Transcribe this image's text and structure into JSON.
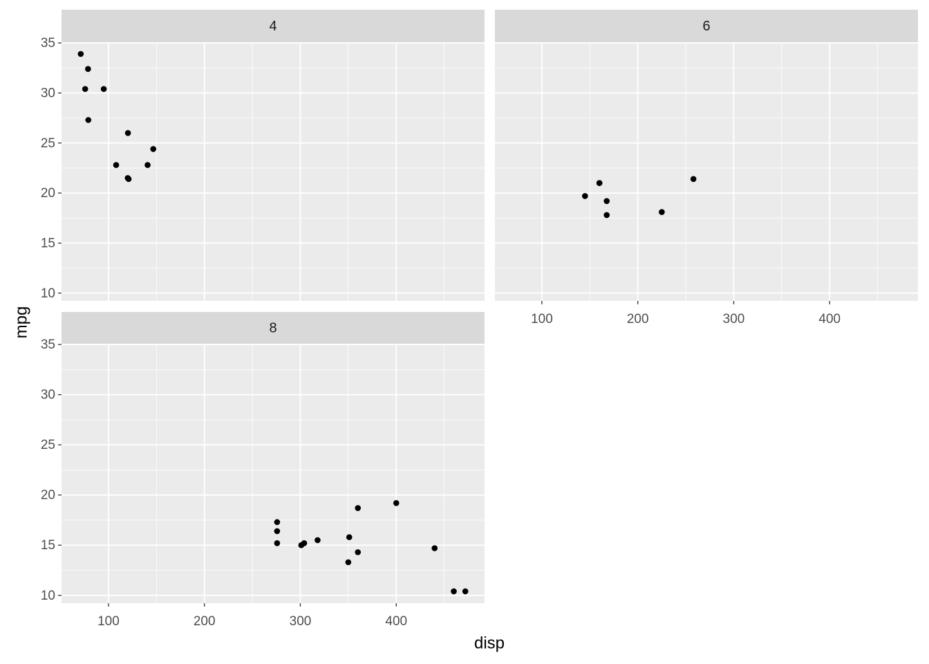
{
  "chart_data": {
    "type": "scatter",
    "xlabel": "disp",
    "ylabel": "mpg",
    "color": "#000000",
    "xlim": [
      51.055,
      492.045
    ],
    "ylim": [
      9.225,
      35.075
    ],
    "xticks": [
      100,
      200,
      300,
      400
    ],
    "yticks": [
      10,
      15,
      20,
      25,
      30,
      35
    ],
    "grid": true,
    "facets": [
      {
        "name": "4",
        "x": [
          108,
          146.7,
          140.8,
          78.7,
          75.7,
          71.1,
          120.1,
          79,
          120.3,
          95.1,
          121
        ],
        "y": [
          22.8,
          24.4,
          22.8,
          32.4,
          30.4,
          33.9,
          21.5,
          27.3,
          26.0,
          30.4,
          21.4
        ]
      },
      {
        "name": "6",
        "x": [
          160,
          160,
          258,
          225,
          167.6,
          167.6,
          145
        ],
        "y": [
          21,
          21,
          21.4,
          18.1,
          19.2,
          17.8,
          19.7
        ]
      },
      {
        "name": "8",
        "x": [
          360,
          360,
          275.8,
          275.8,
          275.8,
          472,
          460,
          440,
          318,
          304,
          350,
          400,
          351,
          301
        ],
        "y": [
          18.7,
          14.3,
          16.4,
          17.3,
          15.2,
          10.4,
          10.4,
          14.7,
          15.5,
          15.2,
          13.3,
          19.2,
          15.8,
          15.0
        ]
      }
    ]
  }
}
